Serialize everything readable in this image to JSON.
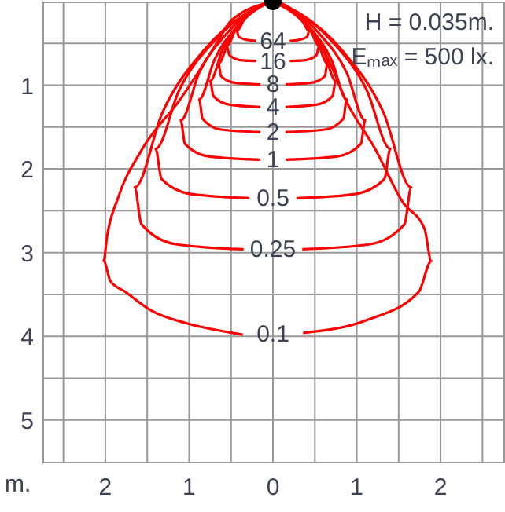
{
  "chart_data": {
    "type": "line",
    "xlabel": "m.",
    "annotations": [
      "H = 0.035m.",
      "Eₘₐₓ = 500 lx."
    ],
    "xlim": [
      -2.75,
      2.75
    ],
    "ylim": [
      5.5,
      0
    ],
    "xticks": [
      {
        "value": -2.5,
        "label": null
      },
      {
        "value": -2,
        "label": "2"
      },
      {
        "value": -1.5,
        "label": null
      },
      {
        "value": -1,
        "label": "1"
      },
      {
        "value": -0.5,
        "label": null
      },
      0,
      {
        "value": 0.5,
        "label": null
      },
      1,
      {
        "value": 1.5,
        "label": null
      },
      2,
      {
        "value": 2.5,
        "label": null
      }
    ],
    "yticks": [
      {
        "value": 0.5,
        "label": null
      },
      1,
      {
        "value": 1.5,
        "label": null
      },
      2,
      {
        "value": 2.5,
        "label": null
      },
      3,
      {
        "value": 3.5,
        "label": null
      },
      4,
      {
        "value": 4.5,
        "label": null
      },
      5
    ],
    "grid": true,
    "line_style": "solid",
    "series": [
      {
        "name": "64",
        "color": "#ff0000",
        "x": [
          0,
          -0.09,
          -0.22,
          -0.34,
          -0.43,
          -0.41,
          -0.3,
          -0.2,
          null,
          0.2,
          0.3,
          0.41,
          0.43,
          0.34,
          0.22,
          0.09,
          0
        ],
        "values": [
          0,
          0.02,
          0.09,
          0.21,
          0.35,
          0.42,
          0.46,
          0.47,
          null,
          0.47,
          0.46,
          0.42,
          0.35,
          0.21,
          0.09,
          0.02,
          0
        ]
      },
      {
        "name": "16",
        "color": "#ff0000",
        "x": [
          0,
          -0.11,
          -0.28,
          -0.44,
          -0.55,
          -0.52,
          -0.39,
          -0.2,
          null,
          0.2,
          0.39,
          0.52,
          0.55,
          0.44,
          0.28,
          0.11,
          0
        ],
        "values": [
          0,
          0.04,
          0.14,
          0.32,
          0.53,
          0.64,
          0.7,
          0.71,
          null,
          0.71,
          0.7,
          0.64,
          0.53,
          0.32,
          0.14,
          0.04,
          0
        ]
      },
      {
        "name": "8",
        "color": "#ff0000",
        "x": [
          0,
          -0.13,
          -0.33,
          -0.52,
          -0.65,
          -0.62,
          -0.46,
          -0.15,
          null,
          0.15,
          0.46,
          0.62,
          0.65,
          0.52,
          0.33,
          0.13,
          0
        ],
        "values": [
          0,
          0.05,
          0.2,
          0.45,
          0.74,
          0.89,
          0.97,
          0.99,
          null,
          0.99,
          0.97,
          0.89,
          0.74,
          0.45,
          0.2,
          0.05,
          0
        ]
      },
      {
        "name": "4",
        "color": "#ff0000",
        "x": [
          0,
          -0.15,
          -0.38,
          -0.6,
          -0.75,
          -0.71,
          -0.53,
          -0.15,
          null,
          0.15,
          0.53,
          0.71,
          0.75,
          0.6,
          0.38,
          0.15,
          0
        ],
        "values": [
          0,
          0.06,
          0.25,
          0.57,
          0.95,
          1.13,
          1.23,
          1.26,
          null,
          1.26,
          1.23,
          1.13,
          0.95,
          0.57,
          0.25,
          0.06,
          0
        ]
      },
      {
        "name": "2",
        "color": "#ff0000",
        "x": [
          0,
          -0.18,
          -0.44,
          -0.7,
          -0.88,
          -0.84,
          -0.62,
          -0.15,
          null,
          0.15,
          0.62,
          0.84,
          0.88,
          0.7,
          0.44,
          0.18,
          0
        ],
        "values": [
          0,
          0.08,
          0.31,
          0.7,
          1.17,
          1.4,
          1.53,
          1.56,
          null,
          1.56,
          1.53,
          1.4,
          1.17,
          0.7,
          0.31,
          0.08,
          0
        ]
      },
      {
        "name": "1",
        "color": "#ff0000",
        "x": [
          0,
          -0.22,
          -0.55,
          -0.88,
          -1.1,
          -1.05,
          -0.77,
          -0.15,
          null,
          0.15,
          0.77,
          1.05,
          1.1,
          0.88,
          0.55,
          0.22,
          0
        ],
        "values": [
          0,
          0.09,
          0.38,
          0.85,
          1.42,
          1.7,
          1.85,
          1.89,
          null,
          1.89,
          1.85,
          1.7,
          1.42,
          0.85,
          0.38,
          0.09,
          0
        ]
      },
      {
        "name": "0.5",
        "color": "#ff0000",
        "x": [
          0,
          -0.28,
          -0.7,
          -1.12,
          -1.4,
          -1.33,
          -0.98,
          -0.28,
          null,
          0.28,
          0.98,
          1.33,
          1.4,
          1.12,
          0.7,
          0.28,
          0
        ],
        "values": [
          0,
          0.12,
          0.47,
          1.06,
          1.76,
          2.12,
          2.3,
          2.35,
          null,
          2.35,
          2.3,
          2.12,
          1.76,
          1.06,
          0.47,
          0.12,
          0
        ]
      },
      {
        "name": "0.25",
        "color": "#ff0000",
        "x": [
          0,
          -0.33,
          -0.83,
          -1.32,
          -1.65,
          -1.57,
          -1.16,
          -0.35,
          null,
          0.35,
          1.16,
          1.57,
          1.65,
          1.32,
          0.83,
          0.33,
          0
        ],
        "values": [
          0,
          0.15,
          0.59,
          1.33,
          2.22,
          2.66,
          2.9,
          2.96,
          null,
          2.96,
          2.9,
          2.66,
          2.22,
          1.33,
          0.59,
          0.15,
          0
        ]
      },
      {
        "name": "0.1",
        "color": "#ff0000",
        "x": [
          0,
          -0.5,
          -0.69,
          -1.1,
          -1.57,
          -1.85,
          -1.98,
          -2.02,
          -1.94,
          -1.76,
          -1.44,
          -1.01,
          -0.36,
          null,
          0.36,
          1.11,
          1.74,
          1.89,
          1.81,
          1.55,
          1.23,
          0.86,
          0.67,
          0.39,
          0
        ],
        "values": [
          0,
          0.23,
          0.53,
          1.16,
          1.78,
          2.35,
          2.81,
          3.1,
          3.34,
          3.47,
          3.7,
          3.85,
          3.98,
          null,
          3.96,
          3.81,
          3.47,
          3.1,
          2.72,
          2.4,
          1.78,
          1.16,
          0.71,
          0.28,
          0
        ]
      },
      {
        "type": "scatter",
        "color": "#000000",
        "x": [
          0
        ],
        "values": [
          0
        ]
      }
    ]
  }
}
